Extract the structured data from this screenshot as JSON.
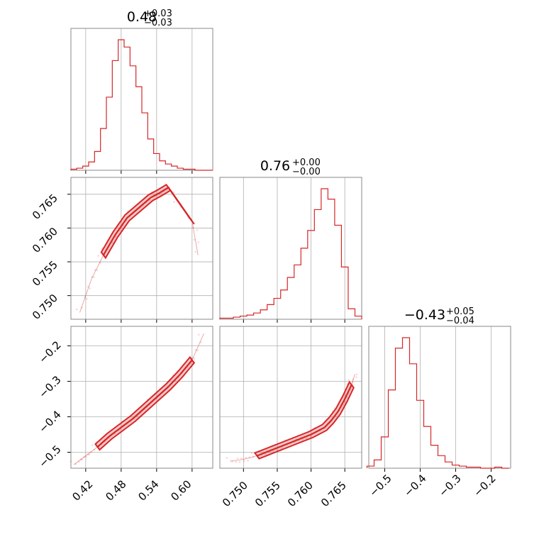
{
  "chart_data": {
    "type": "corner",
    "color": "#d62728",
    "grid": true,
    "parameters": [
      {
        "index": 0,
        "title": {
          "median": "0.48",
          "plus": "+0.03",
          "minus": "−0.03"
        },
        "range": [
          0.395,
          0.635
        ],
        "ticks": [
          "0.42",
          "0.48",
          "0.54",
          "0.60"
        ]
      },
      {
        "index": 1,
        "title": {
          "median": "0.76",
          "plus": "+0.00",
          "minus": "−0.00"
        },
        "range": [
          0.7465,
          0.7675
        ],
        "ticks": [
          "0.750",
          "0.755",
          "0.760",
          "0.765"
        ]
      },
      {
        "index": 2,
        "title": {
          "median": "−0.43",
          "plus": "+0.05",
          "minus": "−0.04"
        },
        "range": [
          -0.545,
          -0.145
        ],
        "ticks": [
          "−0.5",
          "−0.4",
          "−0.3",
          "−0.2"
        ]
      }
    ],
    "y_tick_labels": {
      "row1": [
        "0.765",
        "0.760",
        "0.755",
        "0.750"
      ],
      "row2": [
        "−0.2",
        "−0.3",
        "−0.4",
        "−0.5"
      ]
    },
    "histograms": [
      {
        "param": 0,
        "x": [
          0.4,
          0.41,
          0.42,
          0.43,
          0.44,
          0.45,
          0.46,
          0.47,
          0.48,
          0.49,
          0.5,
          0.51,
          0.52,
          0.53,
          0.54,
          0.55,
          0.56,
          0.57,
          0.58,
          0.59,
          0.6,
          0.61,
          0.62,
          0.63
        ],
        "counts": [
          1,
          2,
          4,
          8,
          18,
          40,
          70,
          105,
          125,
          118,
          100,
          80,
          55,
          30,
          16,
          9,
          6,
          4,
          2,
          1,
          1,
          0,
          0,
          0
        ]
      },
      {
        "param": 1,
        "x": [
          0.747,
          0.748,
          0.749,
          0.75,
          0.751,
          0.752,
          0.753,
          0.754,
          0.755,
          0.756,
          0.757,
          0.758,
          0.759,
          0.76,
          0.761,
          0.762,
          0.763,
          0.764,
          0.765,
          0.766,
          0.767
        ],
        "counts": [
          1,
          1,
          2,
          3,
          4,
          6,
          9,
          14,
          20,
          28,
          40,
          52,
          68,
          85,
          105,
          125,
          115,
          90,
          50,
          10,
          3
        ]
      },
      {
        "param": 2,
        "x": [
          -0.54,
          -0.52,
          -0.5,
          -0.48,
          -0.46,
          -0.44,
          -0.42,
          -0.4,
          -0.38,
          -0.36,
          -0.34,
          -0.32,
          -0.3,
          -0.28,
          -0.26,
          -0.24,
          -0.22,
          -0.2,
          -0.18,
          -0.16
        ],
        "counts": [
          2,
          8,
          30,
          75,
          115,
          125,
          100,
          65,
          40,
          22,
          12,
          6,
          3,
          2,
          1,
          1,
          0,
          0,
          1,
          0
        ]
      }
    ],
    "scatter_panels": [
      {
        "row": 1,
        "col": 0,
        "x": [
          0.41,
          0.43,
          0.45,
          0.47,
          0.49,
          0.51,
          0.53,
          0.545,
          0.56,
          0.6,
          0.61
        ],
        "y": [
          0.7475,
          0.7525,
          0.756,
          0.759,
          0.7615,
          0.763,
          0.7645,
          0.7652,
          0.766,
          0.761,
          0.756
        ]
      },
      {
        "row": 2,
        "col": 0,
        "x": [
          0.4,
          0.42,
          0.44,
          0.46,
          0.48,
          0.5,
          0.52,
          0.54,
          0.56,
          0.58,
          0.6,
          0.62
        ],
        "y": [
          -0.535,
          -0.51,
          -0.485,
          -0.455,
          -0.43,
          -0.405,
          -0.375,
          -0.345,
          -0.315,
          -0.28,
          -0.24,
          -0.165
        ]
      },
      {
        "row": 2,
        "col": 1,
        "x": [
          0.748,
          0.75,
          0.752,
          0.754,
          0.756,
          0.758,
          0.76,
          0.762,
          0.763,
          0.764,
          0.765,
          0.766,
          0.7665
        ],
        "y": [
          -0.525,
          -0.52,
          -0.51,
          -0.495,
          -0.48,
          -0.465,
          -0.45,
          -0.43,
          -0.41,
          -0.385,
          -0.35,
          -0.31,
          -0.28
        ]
      }
    ]
  }
}
